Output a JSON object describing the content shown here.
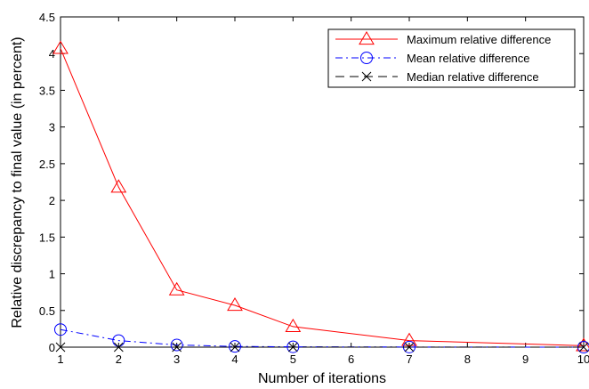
{
  "chart_data": {
    "type": "line",
    "xlabel": "Number of iterations",
    "ylabel": "Relative discrepancy to final value (in percent)",
    "xlim": [
      1,
      10
    ],
    "ylim": [
      0,
      4.5
    ],
    "xticks": [
      "1",
      "2",
      "3",
      "4",
      "5",
      "6",
      "7",
      "8",
      "9",
      "10"
    ],
    "yticks": [
      "0",
      "0.5",
      "1",
      "1.5",
      "2",
      "2.5",
      "3",
      "3.5",
      "4",
      "4.5"
    ],
    "grid": false,
    "legend_position": "top-right",
    "x": [
      1,
      2,
      3,
      4,
      5,
      7,
      10
    ],
    "series": [
      {
        "name": "Maximum relative difference",
        "color": "#ff0000",
        "line": "solid",
        "marker": "triangle",
        "values": [
          4.07,
          2.18,
          0.78,
          0.57,
          0.28,
          0.09,
          0.02
        ]
      },
      {
        "name": "Mean relative difference",
        "color": "#0000ff",
        "line": "dashdot",
        "marker": "circle",
        "values": [
          0.24,
          0.09,
          0.03,
          0.01,
          0.005,
          0.002,
          0.0
        ]
      },
      {
        "name": "Median relative difference",
        "color": "#000000",
        "line": "dashed",
        "marker": "x",
        "values": [
          0.0,
          0.0,
          0.0,
          0.0,
          0.0,
          0.0,
          0.0
        ]
      }
    ]
  }
}
